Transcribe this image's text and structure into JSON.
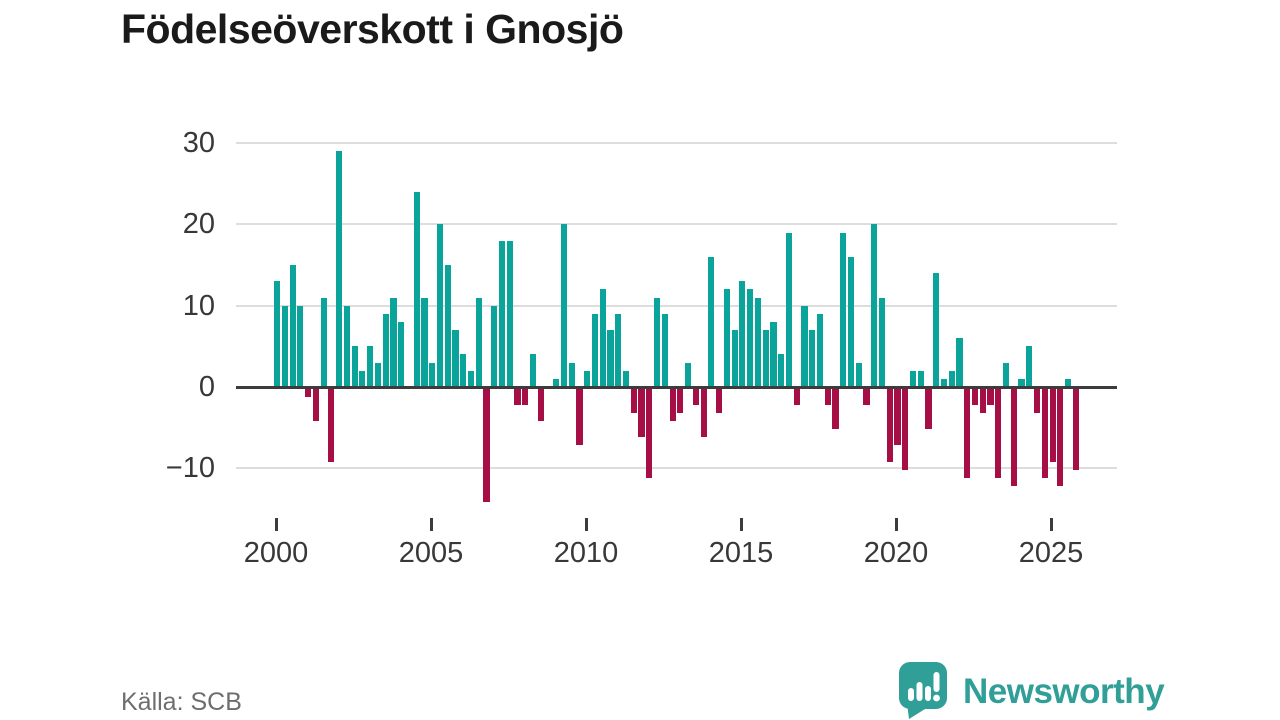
{
  "title": "Födelseöverskott i Gnosjö",
  "source": "Källa: SCB",
  "logo": {
    "text": "Newsworthy",
    "icon": "newsworthy-speech-bubble-chart-icon"
  },
  "colors": {
    "positive_bar": "#0ba49a",
    "negative_bar": "#a50f45",
    "grid": "#dddddd",
    "zero_line": "#3c3c3c",
    "axis_text": "#383838",
    "title_text": "#1a1a1a",
    "source_text": "#6e6e6e",
    "logo_teal": "#2f9f97"
  },
  "chart_data": {
    "type": "bar",
    "title": "Födelseöverskott i Gnosjö",
    "start_year": 2000,
    "periods_per_year": 4,
    "x_tick_labels": [
      "2000",
      "2005",
      "2010",
      "2015",
      "2020",
      "2025"
    ],
    "y_ticks": [
      30,
      20,
      10,
      0,
      -10
    ],
    "y_tick_labels": [
      "30",
      "20",
      "10",
      "0",
      "−10"
    ],
    "ylim": [
      -15,
      31
    ],
    "grid": true,
    "legend": false,
    "values": [
      13,
      10,
      15,
      10,
      -1,
      -4,
      11,
      -9,
      29,
      10,
      5,
      2,
      5,
      3,
      9,
      11,
      8,
      0,
      24,
      11,
      3,
      20,
      15,
      7,
      4,
      2,
      11,
      -14,
      10,
      18,
      18,
      -2,
      -2,
      4,
      -4,
      0,
      1,
      20,
      3,
      -7,
      2,
      9,
      12,
      7,
      9,
      2,
      -3,
      -6,
      -11,
      11,
      9,
      -4,
      -3,
      3,
      -2,
      -6,
      16,
      -3,
      12,
      7,
      13,
      12,
      11,
      7,
      8,
      4,
      19,
      -2,
      10,
      7,
      9,
      -2,
      -5,
      19,
      16,
      3,
      -2,
      20,
      11,
      -9,
      -7,
      -10,
      2,
      2,
      -5,
      14,
      1,
      2,
      6,
      -11,
      -2,
      -3,
      -2,
      -11,
      3,
      -12,
      1,
      5,
      -3,
      -11,
      -9,
      -12,
      1,
      -10
    ]
  }
}
